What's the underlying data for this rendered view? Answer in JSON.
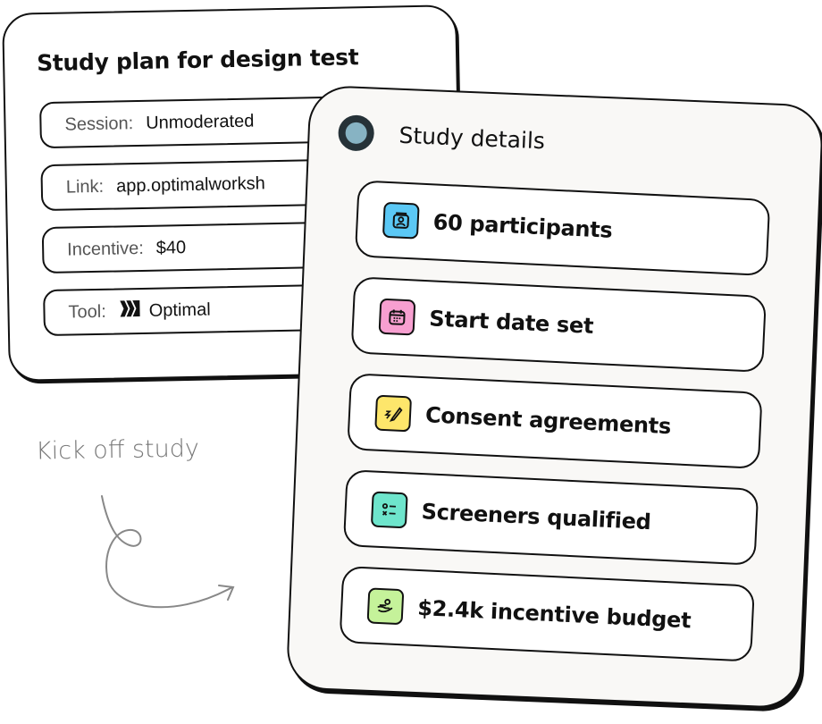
{
  "plan_card": {
    "title": "Study plan for design test",
    "fields": [
      {
        "label": "Session:",
        "value": "Unmoderated"
      },
      {
        "label": "Link:",
        "value": "app.optimalworksh"
      },
      {
        "label": "Incentive:",
        "value": "$40"
      },
      {
        "label": "Tool:",
        "value": "Optimal",
        "icon": "optimal-logo-icon"
      }
    ]
  },
  "details_card": {
    "title": "Study details",
    "status_colors": {
      "ring": "#263238",
      "dot": "#87b3c3"
    },
    "items": [
      {
        "label": "60 participants",
        "icon": "participant-badge-icon",
        "color": "#5bc8f5"
      },
      {
        "label": "Start date set",
        "icon": "calendar-icon",
        "color": "#f79fd0"
      },
      {
        "label": "Consent agreements",
        "icon": "signature-pen-icon",
        "color": "#fde66b"
      },
      {
        "label": "Screeners qualified",
        "icon": "checklist-icon",
        "color": "#6ee5cc"
      },
      {
        "label": "$2.4k incentive budget",
        "icon": "hand-coin-icon",
        "color": "#c5f29a"
      }
    ]
  },
  "annotation": {
    "text": "Kick off study"
  }
}
